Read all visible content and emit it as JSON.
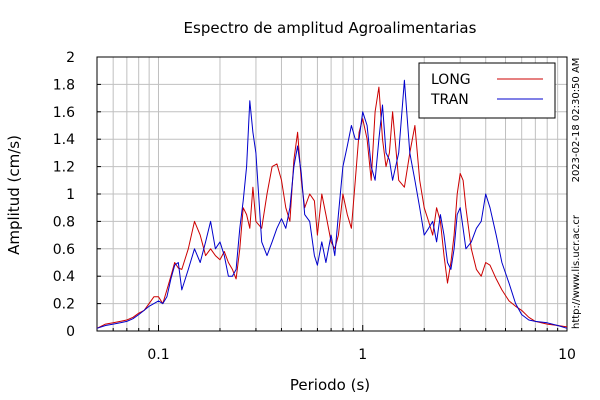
{
  "chart_data": {
    "type": "line",
    "title": "Espectro de amplitud Agroalimentarias",
    "xlabel": "Periodo (s)",
    "ylabel": "Amplitud (cm/s)",
    "x_scale": "log",
    "xlim": [
      0.05,
      10
    ],
    "ylim": [
      0,
      2
    ],
    "x_ticks": [
      {
        "value": 0.1,
        "label": "0.1"
      },
      {
        "value": 1,
        "label": "1"
      },
      {
        "value": 10,
        "label": "10"
      }
    ],
    "y_ticks": [
      {
        "value": 0,
        "label": "0"
      },
      {
        "value": 0.2,
        "label": "0.2"
      },
      {
        "value": 0.4,
        "label": "0.4"
      },
      {
        "value": 0.6,
        "label": "0.6"
      },
      {
        "value": 0.8,
        "label": "0.8"
      },
      {
        "value": 1,
        "label": "1"
      },
      {
        "value": 1.2,
        "label": "1.2"
      },
      {
        "value": 1.4,
        "label": "1.4"
      },
      {
        "value": 1.6,
        "label": "1.6"
      },
      {
        "value": 1.8,
        "label": "1.8"
      },
      {
        "value": 2,
        "label": "2"
      }
    ],
    "grid": true,
    "legend_position": "top-right",
    "series": [
      {
        "name": "LONG",
        "color": "#cc0000",
        "x": [
          0.05,
          0.055,
          0.06,
          0.065,
          0.07,
          0.075,
          0.08,
          0.085,
          0.09,
          0.095,
          0.1,
          0.105,
          0.11,
          0.115,
          0.12,
          0.125,
          0.13,
          0.14,
          0.15,
          0.16,
          0.17,
          0.18,
          0.19,
          0.2,
          0.21,
          0.22,
          0.23,
          0.24,
          0.25,
          0.26,
          0.27,
          0.28,
          0.29,
          0.3,
          0.32,
          0.34,
          0.36,
          0.38,
          0.4,
          0.42,
          0.44,
          0.46,
          0.48,
          0.5,
          0.52,
          0.55,
          0.58,
          0.6,
          0.63,
          0.66,
          0.7,
          0.73,
          0.76,
          0.8,
          0.84,
          0.88,
          0.92,
          0.96,
          1.0,
          1.05,
          1.1,
          1.15,
          1.2,
          1.25,
          1.3,
          1.35,
          1.4,
          1.5,
          1.6,
          1.7,
          1.8,
          1.9,
          2.0,
          2.1,
          2.2,
          2.3,
          2.4,
          2.5,
          2.6,
          2.7,
          2.8,
          2.9,
          3.0,
          3.1,
          3.2,
          3.4,
          3.6,
          3.8,
          4.0,
          4.2,
          4.5,
          4.8,
          5.2,
          5.6,
          6.0,
          6.5,
          7.0,
          8.0,
          9.0,
          10.0
        ],
        "y": [
          0.02,
          0.05,
          0.06,
          0.07,
          0.08,
          0.1,
          0.13,
          0.15,
          0.2,
          0.25,
          0.25,
          0.2,
          0.3,
          0.4,
          0.5,
          0.46,
          0.45,
          0.6,
          0.8,
          0.7,
          0.55,
          0.6,
          0.55,
          0.52,
          0.58,
          0.5,
          0.45,
          0.38,
          0.6,
          0.9,
          0.85,
          0.75,
          1.05,
          0.8,
          0.75,
          1.0,
          1.2,
          1.22,
          1.1,
          0.9,
          0.8,
          1.25,
          1.45,
          1.1,
          0.9,
          1.0,
          0.95,
          0.7,
          1.0,
          0.85,
          0.65,
          0.6,
          0.7,
          1.0,
          0.85,
          0.75,
          1.1,
          1.45,
          1.55,
          1.4,
          1.1,
          1.6,
          1.78,
          1.4,
          1.2,
          1.3,
          1.6,
          1.1,
          1.05,
          1.3,
          1.5,
          1.1,
          0.9,
          0.8,
          0.7,
          0.9,
          0.8,
          0.55,
          0.35,
          0.5,
          0.7,
          1.0,
          1.15,
          1.1,
          0.9,
          0.6,
          0.45,
          0.4,
          0.5,
          0.48,
          0.38,
          0.3,
          0.22,
          0.18,
          0.15,
          0.1,
          0.07,
          0.05,
          0.04,
          0.03
        ]
      },
      {
        "name": "TRAN",
        "color": "#0000cc",
        "x": [
          0.05,
          0.055,
          0.06,
          0.065,
          0.07,
          0.075,
          0.08,
          0.085,
          0.09,
          0.095,
          0.1,
          0.105,
          0.11,
          0.115,
          0.12,
          0.125,
          0.13,
          0.14,
          0.15,
          0.16,
          0.17,
          0.18,
          0.19,
          0.2,
          0.21,
          0.22,
          0.23,
          0.24,
          0.25,
          0.26,
          0.27,
          0.28,
          0.29,
          0.3,
          0.32,
          0.34,
          0.36,
          0.38,
          0.4,
          0.42,
          0.44,
          0.46,
          0.48,
          0.5,
          0.52,
          0.55,
          0.58,
          0.6,
          0.63,
          0.66,
          0.7,
          0.73,
          0.76,
          0.8,
          0.84,
          0.88,
          0.92,
          0.96,
          1.0,
          1.05,
          1.1,
          1.15,
          1.2,
          1.25,
          1.3,
          1.35,
          1.4,
          1.5,
          1.6,
          1.7,
          1.8,
          1.9,
          2.0,
          2.1,
          2.2,
          2.3,
          2.4,
          2.5,
          2.6,
          2.7,
          2.8,
          2.9,
          3.0,
          3.1,
          3.2,
          3.4,
          3.6,
          3.8,
          4.0,
          4.2,
          4.5,
          4.8,
          5.2,
          5.6,
          6.0,
          6.5,
          7.0,
          8.0,
          9.0,
          10.0
        ],
        "y": [
          0.02,
          0.04,
          0.05,
          0.06,
          0.07,
          0.09,
          0.12,
          0.15,
          0.18,
          0.2,
          0.22,
          0.2,
          0.25,
          0.38,
          0.48,
          0.5,
          0.3,
          0.45,
          0.6,
          0.5,
          0.65,
          0.8,
          0.6,
          0.65,
          0.55,
          0.4,
          0.4,
          0.45,
          0.75,
          0.95,
          1.2,
          1.68,
          1.45,
          1.3,
          0.65,
          0.55,
          0.65,
          0.75,
          0.82,
          0.75,
          0.9,
          1.2,
          1.35,
          1.15,
          0.85,
          0.8,
          0.55,
          0.48,
          0.65,
          0.5,
          0.7,
          0.55,
          0.85,
          1.2,
          1.35,
          1.5,
          1.4,
          1.4,
          1.6,
          1.5,
          1.2,
          1.1,
          1.4,
          1.65,
          1.3,
          1.25,
          1.1,
          1.3,
          1.83,
          1.3,
          1.1,
          0.9,
          0.7,
          0.75,
          0.8,
          0.65,
          0.85,
          0.7,
          0.5,
          0.45,
          0.6,
          0.85,
          0.9,
          0.75,
          0.6,
          0.65,
          0.75,
          0.8,
          1.0,
          0.9,
          0.7,
          0.5,
          0.35,
          0.2,
          0.12,
          0.08,
          0.07,
          0.06,
          0.04,
          0.02
        ]
      }
    ]
  },
  "side_texts": {
    "timestamp": "2023-02-18 02:30:50 AM",
    "url": "http://www.lis.ucr.ac.cr"
  }
}
